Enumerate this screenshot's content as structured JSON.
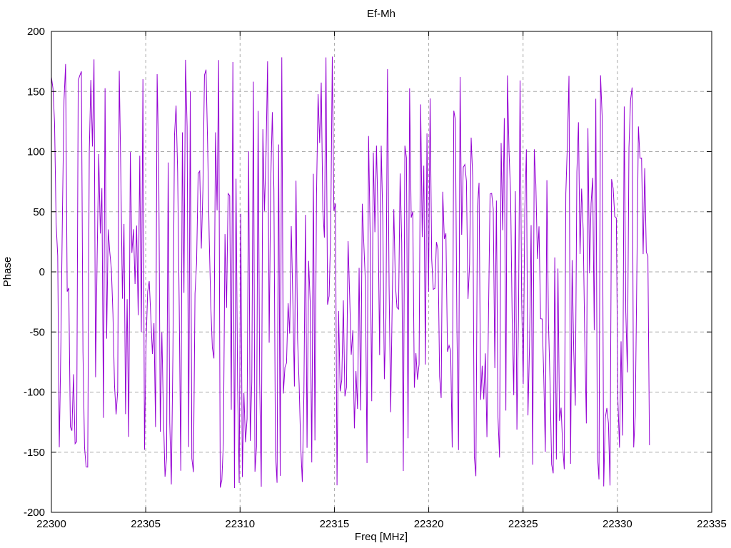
{
  "page": {
    "background_color": "#ffffff"
  },
  "chart_data": {
    "type": "line",
    "title": "Ef-Mh",
    "xlabel": "Freq [MHz]",
    "ylabel": "Phase",
    "xlim": [
      22300,
      22335
    ],
    "ylim": [
      -200,
      200
    ],
    "xticks": [
      22300,
      22305,
      22310,
      22315,
      22320,
      22325,
      22330,
      22335
    ],
    "yticks": [
      -200,
      -150,
      -100,
      -50,
      0,
      50,
      100,
      150,
      200
    ],
    "grid": true,
    "grid_style": "dashed",
    "legend_position": "none",
    "line_color": "#9400D3",
    "grid_color": "#a8a8a8",
    "axis_color": "#000000",
    "series": [
      {
        "name": "Ef-Mh",
        "description": "Wrapped interferometric phase (degrees) versus frequency; phase wraps within +/-180 deg so rapidly between samples that the trace renders as a dense comb of near-vertical violet strokes spanning roughly -180 to +180 deg across the whole band",
        "x_start": 22300.0,
        "x_end": 22331.7,
        "n_points": 380,
        "y_wrap_min": -180,
        "y_wrap_max": 180,
        "generator": {
          "kind": "seeded-wrapped-phase",
          "seed": 987654321,
          "y0": 162,
          "mean_step_deg": 141,
          "jitter_deg": 232
        }
      }
    ]
  }
}
